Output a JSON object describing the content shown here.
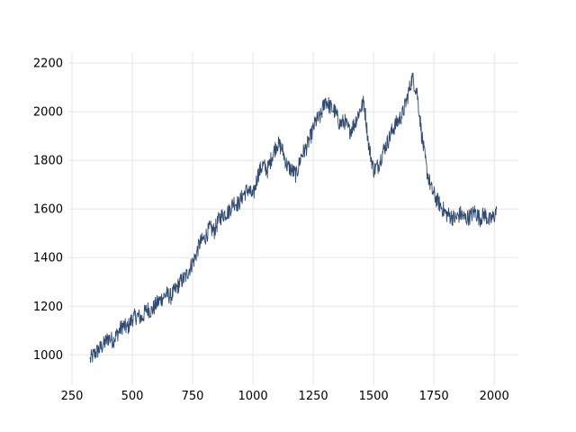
{
  "chart_data": {
    "type": "line",
    "title": "",
    "xlabel": "",
    "ylabel": "",
    "xlim": [
      250,
      2100
    ],
    "ylim": [
      890,
      2245
    ],
    "grid": true,
    "legend": "none",
    "colors": {
      "line": "#2f4b73",
      "grid": "#e6e6e6",
      "background": "#ffffff"
    },
    "x_ticks": [
      {
        "value": 250,
        "label": "250"
      },
      {
        "value": 500,
        "label": "500"
      },
      {
        "value": 750,
        "label": "750"
      },
      {
        "value": 1000,
        "label": "1000"
      },
      {
        "value": 1250,
        "label": "1250"
      },
      {
        "value": 1500,
        "label": "1500"
      },
      {
        "value": 1750,
        "label": "1750"
      },
      {
        "value": 2000,
        "label": "2000"
      }
    ],
    "y_ticks": [
      {
        "value": 1000,
        "label": "1000"
      },
      {
        "value": 1200,
        "label": "1200"
      },
      {
        "value": 1400,
        "label": "1400"
      },
      {
        "value": 1600,
        "label": "1600"
      },
      {
        "value": 1800,
        "label": "1800"
      },
      {
        "value": 2000,
        "label": "2000"
      },
      {
        "value": 2200,
        "label": "2200"
      }
    ],
    "series": [
      {
        "x": [
          325,
          340,
          360,
          380,
          400,
          420,
          440,
          460,
          480,
          500,
          520,
          540,
          560,
          580,
          600,
          620,
          640,
          660,
          680,
          700,
          720,
          740,
          760,
          780,
          800,
          820,
          840,
          860,
          880,
          900,
          920,
          940,
          960,
          980,
          1000,
          1020,
          1040,
          1060,
          1080,
          1100,
          1120,
          1140,
          1160,
          1180,
          1200,
          1220,
          1240,
          1260,
          1280,
          1300,
          1320,
          1340,
          1360,
          1380,
          1400,
          1420,
          1440,
          1460,
          1480,
          1500,
          1520,
          1540,
          1560,
          1580,
          1600,
          1620,
          1640,
          1660,
          1680,
          1700,
          1720,
          1740,
          1760,
          1780,
          1800,
          1820,
          1840,
          1860,
          1880,
          1900,
          1920,
          1940,
          1960,
          1980,
          2000,
          2010
        ],
        "y": [
          980,
          1000,
          1020,
          1040,
          1070,
          1060,
          1090,
          1120,
          1110,
          1150,
          1160,
          1150,
          1190,
          1180,
          1210,
          1230,
          1250,
          1240,
          1270,
          1300,
          1320,
          1360,
          1400,
          1460,
          1480,
          1520,
          1510,
          1560,
          1580,
          1590,
          1630,
          1620,
          1660,
          1680,
          1650,
          1740,
          1780,
          1760,
          1820,
          1870,
          1850,
          1780,
          1760,
          1740,
          1820,
          1850,
          1900,
          1960,
          1980,
          2050,
          2020,
          2000,
          1950,
          1960,
          1920,
          1950,
          2000,
          2040,
          1860,
          1760,
          1780,
          1840,
          1880,
          1930,
          1960,
          1990,
          2060,
          2140,
          2080,
          1900,
          1760,
          1680,
          1640,
          1610,
          1580,
          1570,
          1560,
          1580,
          1560,
          1570,
          1590,
          1560,
          1580,
          1550,
          1570,
          1600
        ]
      }
    ]
  }
}
